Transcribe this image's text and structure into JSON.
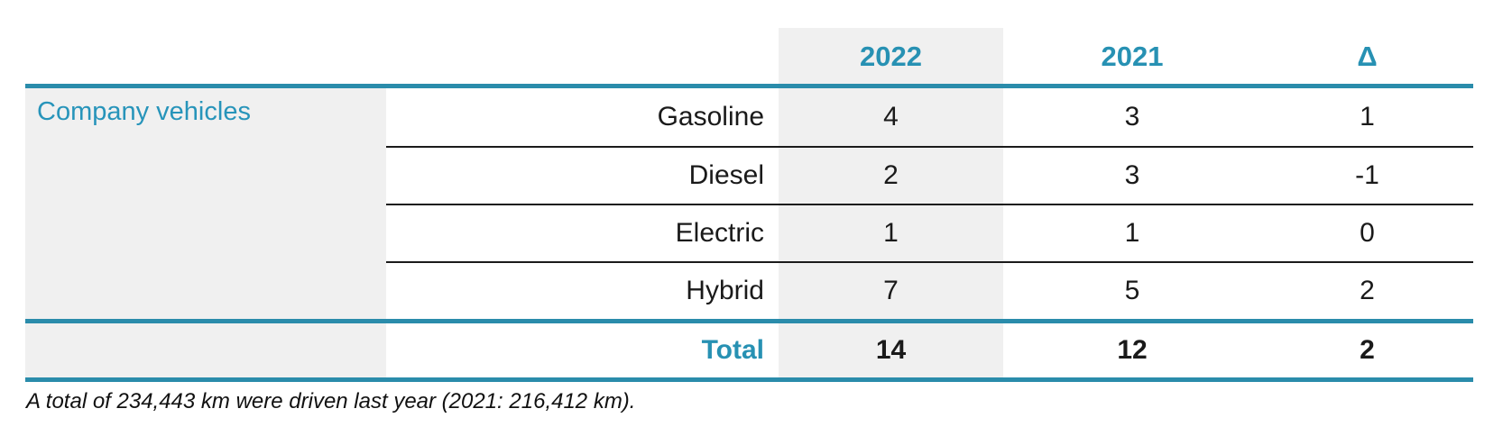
{
  "table": {
    "group_label": "Company vehicles",
    "columns": {
      "col_2022": "2022",
      "col_2021": "2021",
      "col_delta": "Δ"
    },
    "rows": [
      {
        "label": "Gasoline",
        "y2022": "4",
        "y2021": "3",
        "delta": "1"
      },
      {
        "label": "Diesel",
        "y2022": "2",
        "y2021": "3",
        "delta": "-1"
      },
      {
        "label": "Electric",
        "y2022": "1",
        "y2021": "1",
        "delta": "0"
      },
      {
        "label": "Hybrid",
        "y2022": "7",
        "y2021": "5",
        "delta": "2"
      }
    ],
    "total": {
      "label": "Total",
      "y2022": "14",
      "y2021": "12",
      "delta": "2"
    }
  },
  "footnote": "A total of 234,443 km were driven last year (2021: 216,412 km).",
  "colors": {
    "accent": "#2a8cab",
    "accent_text": "#2791b3",
    "row_shade": "#f0f0f0",
    "separator": "#1b1b1b"
  }
}
